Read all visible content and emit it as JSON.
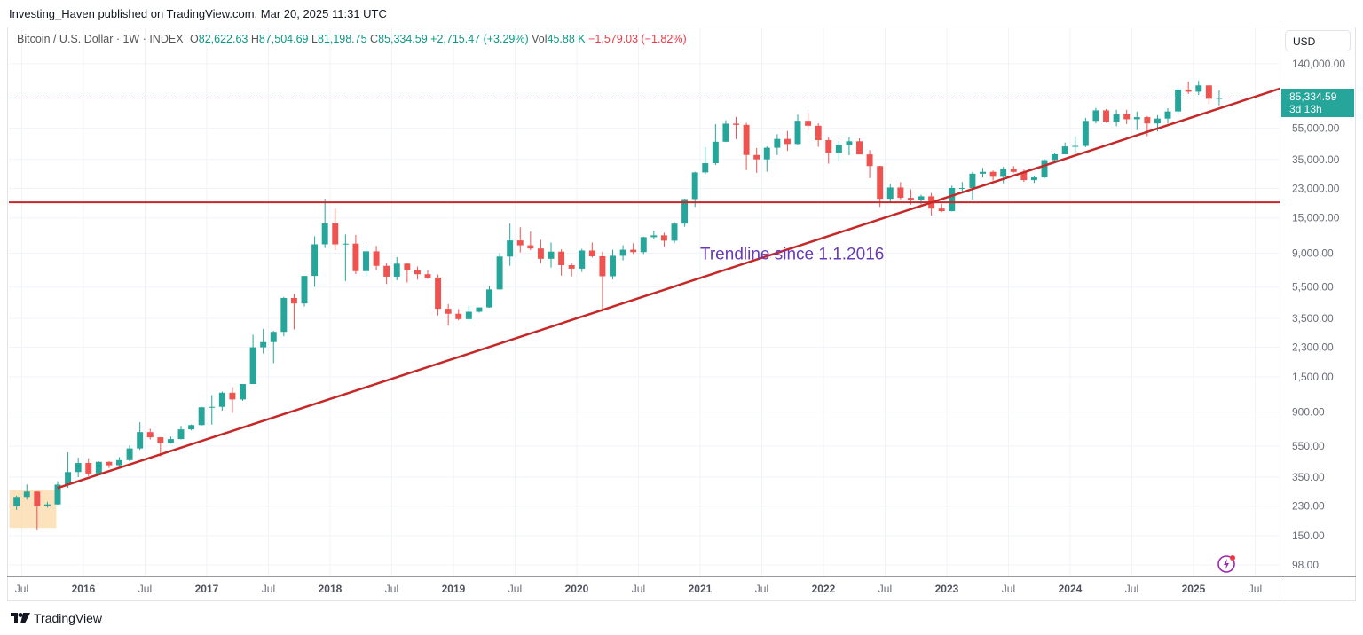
{
  "header": {
    "published": "Investing_Haven published on TradingView.com, Mar 20, 2025 11:31 UTC"
  },
  "legend": {
    "symbol": "Bitcoin / U.S. Dollar · 1W · INDEX",
    "o_label": "O",
    "o": "82,622.63",
    "h_label": "H",
    "h": "87,504.69",
    "l_label": "L",
    "l": "81,198.75",
    "c_label": "C",
    "c": "85,334.59",
    "change": "+2,715.47 (+3.29%)",
    "vol_label": "Vol",
    "vol": "45.88 K",
    "vol_change": "−1,579.03 (−1.82%)"
  },
  "price_scale": {
    "currency": "USD",
    "last_price": "85,334.59",
    "countdown": "3d 13h"
  },
  "footer": {
    "brand": "TradingView"
  },
  "colors": {
    "up": "#26a69a",
    "down": "#ef5350",
    "trendline": "#c62828",
    "annotation": "#673ab7",
    "highlight": "#fbd9a8",
    "grid": "#f0f3fa"
  },
  "chart_data": {
    "type": "candlestick",
    "scale": "log",
    "grid": true,
    "ylim": [
      83,
      240000
    ],
    "xlim": [
      2015.396,
      2025.698
    ],
    "y_ticks": [
      140000,
      55000,
      35000,
      23000,
      15000,
      9000,
      5500,
      3500,
      2300,
      1500,
      900,
      550,
      350,
      230,
      150,
      98
    ],
    "y_tick_labels": [
      "140,000.00",
      "55,000.00",
      "35,000.00",
      "23,000.00",
      "15,000.00",
      "9,000.00",
      "5,500.00",
      "3,500.00",
      "2,300.00",
      "1,500.00",
      "900.00",
      "550.00",
      "350.00",
      "230.00",
      "150.00",
      "98.00"
    ],
    "x_ticks": [
      2015.5,
      2016,
      2016.5,
      2017,
      2017.5,
      2018,
      2018.5,
      2019,
      2019.5,
      2020,
      2020.5,
      2021,
      2021.5,
      2022,
      2022.5,
      2023,
      2023.5,
      2024,
      2024.5,
      2025,
      2025.5
    ],
    "x_tick_labels": [
      "Jul",
      "2016",
      "Jul",
      "2017",
      "Jul",
      "2018",
      "Jul",
      "2019",
      "Jul",
      "2020",
      "Jul",
      "2021",
      "Jul",
      "2022",
      "Jul",
      "2023",
      "Jul",
      "2024",
      "Jul",
      "2025",
      "Jul"
    ],
    "last_price": 85334.59,
    "horizontal_line": 18800,
    "trendline": {
      "start": [
        2015.79,
        299
      ],
      "end": [
        2025.7,
        97700
      ],
      "label": "Trendline since 1.1.2016",
      "label_at": [
        2021.0,
        9000
      ]
    },
    "highlight_box": {
      "time": [
        2015.4,
        2015.78
      ],
      "price": [
        168,
        291
      ]
    },
    "ohlc_columns": [
      "month",
      "open",
      "high",
      "low",
      "close"
    ],
    "ohlc": [
      [
        "2015-06",
        230,
        268,
        218,
        263
      ],
      [
        "2015-07",
        263,
        315,
        253,
        284
      ],
      [
        "2015-08",
        284,
        285,
        162,
        230
      ],
      [
        "2015-09",
        230,
        245,
        225,
        236
      ],
      [
        "2015-10",
        236,
        330,
        235,
        314
      ],
      [
        "2015-11",
        314,
        502,
        300,
        377
      ],
      [
        "2015-12",
        377,
        465,
        350,
        430
      ],
      [
        "2016-01",
        430,
        460,
        355,
        369
      ],
      [
        "2016-02",
        369,
        440,
        365,
        437
      ],
      [
        "2016-03",
        437,
        440,
        400,
        416
      ],
      [
        "2016-04",
        416,
        468,
        412,
        448
      ],
      [
        "2016-05",
        448,
        555,
        440,
        531
      ],
      [
        "2016-06",
        531,
        778,
        520,
        673
      ],
      [
        "2016-07",
        673,
        705,
        605,
        624
      ],
      [
        "2016-08",
        624,
        625,
        472,
        574
      ],
      [
        "2016-09",
        574,
        630,
        570,
        608
      ],
      [
        "2016-10",
        608,
        735,
        605,
        700
      ],
      [
        "2016-11",
        700,
        752,
        690,
        745
      ],
      [
        "2016-12",
        745,
        970,
        740,
        964
      ],
      [
        "2017-01",
        964,
        1150,
        750,
        970
      ],
      [
        "2017-02",
        970,
        1210,
        918,
        1190
      ],
      [
        "2017-03",
        1190,
        1290,
        890,
        1080
      ],
      [
        "2017-04",
        1080,
        1350,
        1060,
        1350
      ],
      [
        "2017-05",
        1350,
        2760,
        1350,
        2300
      ],
      [
        "2017-06",
        2300,
        3000,
        2100,
        2480
      ],
      [
        "2017-07",
        2480,
        2920,
        1830,
        2875
      ],
      [
        "2017-08",
        2875,
        4770,
        2700,
        4700
      ],
      [
        "2017-09",
        4700,
        4980,
        2980,
        4340
      ],
      [
        "2017-10",
        4340,
        6470,
        4150,
        6470
      ],
      [
        "2017-11",
        6470,
        11500,
        5520,
        10230
      ],
      [
        "2017-12",
        10230,
        19800,
        9700,
        13860
      ],
      [
        "2018-01",
        13860,
        17250,
        9400,
        10220
      ],
      [
        "2018-02",
        10220,
        11800,
        6000,
        10330
      ],
      [
        "2018-03",
        10330,
        11700,
        6650,
        6930
      ],
      [
        "2018-04",
        6930,
        9800,
        6430,
        9240
      ],
      [
        "2018-05",
        9240,
        10000,
        7000,
        7490
      ],
      [
        "2018-06",
        7490,
        7760,
        5750,
        6400
      ],
      [
        "2018-07",
        6400,
        8500,
        6070,
        7730
      ],
      [
        "2018-08",
        7730,
        7750,
        5880,
        7030
      ],
      [
        "2018-09",
        7030,
        7410,
        6130,
        6630
      ],
      [
        "2018-10",
        6630,
        7000,
        6200,
        6320
      ],
      [
        "2018-11",
        6320,
        6600,
        3650,
        4020
      ],
      [
        "2018-12",
        4020,
        4300,
        3150,
        3740
      ],
      [
        "2019-01",
        3740,
        4000,
        3400,
        3460
      ],
      [
        "2019-02",
        3460,
        4200,
        3400,
        3850
      ],
      [
        "2019-03",
        3850,
        4100,
        3800,
        4100
      ],
      [
        "2019-04",
        4100,
        5600,
        4080,
        5320
      ],
      [
        "2019-05",
        5320,
        9000,
        5300,
        8570
      ],
      [
        "2019-06",
        8570,
        13800,
        7500,
        10820
      ],
      [
        "2019-07",
        10820,
        13100,
        9100,
        10080
      ],
      [
        "2019-08",
        10080,
        12300,
        9400,
        9630
      ],
      [
        "2019-09",
        9630,
        10900,
        7800,
        8290
      ],
      [
        "2019-10",
        8290,
        10500,
        7300,
        9200
      ],
      [
        "2019-11",
        9200,
        9500,
        6500,
        7560
      ],
      [
        "2019-12",
        7560,
        7750,
        6430,
        7190
      ],
      [
        "2020-01",
        7190,
        9580,
        6850,
        9350
      ],
      [
        "2020-02",
        9350,
        10500,
        8450,
        8600
      ],
      [
        "2020-03",
        8600,
        9190,
        3850,
        6440
      ],
      [
        "2020-04",
        6440,
        9460,
        6150,
        8660
      ],
      [
        "2020-05",
        8660,
        10080,
        8110,
        9460
      ],
      [
        "2020-06",
        9460,
        10400,
        8900,
        9140
      ],
      [
        "2020-07",
        9140,
        11440,
        8900,
        11350
      ],
      [
        "2020-08",
        11350,
        12480,
        11000,
        11650
      ],
      [
        "2020-09",
        11650,
        12100,
        9870,
        10780
      ],
      [
        "2020-10",
        10780,
        14100,
        10400,
        13800
      ],
      [
        "2020-11",
        13800,
        19800,
        13200,
        19700
      ],
      [
        "2020-12",
        19700,
        29300,
        17600,
        28990
      ],
      [
        "2021-01",
        28990,
        41950,
        28130,
        33140
      ],
      [
        "2021-02",
        33140,
        58350,
        32300,
        45240
      ],
      [
        "2021-03",
        45240,
        61800,
        45000,
        58800
      ],
      [
        "2021-04",
        58800,
        64900,
        47000,
        57750
      ],
      [
        "2021-05",
        57750,
        59500,
        30000,
        37330
      ],
      [
        "2021-06",
        37330,
        41300,
        28800,
        35040
      ],
      [
        "2021-07",
        35040,
        42300,
        29300,
        41460
      ],
      [
        "2021-08",
        41460,
        50500,
        37300,
        47100
      ],
      [
        "2021-09",
        47100,
        52900,
        39600,
        43790
      ],
      [
        "2021-10",
        43790,
        67000,
        43300,
        61300
      ],
      [
        "2021-11",
        61300,
        69000,
        53500,
        57000
      ],
      [
        "2021-12",
        57000,
        59000,
        42000,
        46300
      ],
      [
        "2022-01",
        46300,
        48000,
        32900,
        38480
      ],
      [
        "2022-02",
        38480,
        45800,
        34300,
        43190
      ],
      [
        "2022-03",
        43190,
        48200,
        37200,
        45540
      ],
      [
        "2022-04",
        45540,
        47500,
        37700,
        37640
      ],
      [
        "2022-05",
        37640,
        40000,
        26700,
        31800
      ],
      [
        "2022-06",
        31800,
        31900,
        17600,
        19780
      ],
      [
        "2022-07",
        19780,
        24600,
        18800,
        23300
      ],
      [
        "2022-08",
        23300,
        25200,
        19600,
        20050
      ],
      [
        "2022-09",
        20050,
        22700,
        18200,
        19430
      ],
      [
        "2022-10",
        19430,
        21000,
        18200,
        20500
      ],
      [
        "2022-11",
        20500,
        21500,
        15500,
        17170
      ],
      [
        "2022-12",
        17170,
        18400,
        16300,
        16550
      ],
      [
        "2023-01",
        16550,
        23950,
        16500,
        23130
      ],
      [
        "2023-02",
        23130,
        25250,
        21400,
        23150
      ],
      [
        "2023-03",
        23150,
        29200,
        19550,
        28480
      ],
      [
        "2023-04",
        28480,
        31000,
        26900,
        29250
      ],
      [
        "2023-05",
        29250,
        29800,
        25800,
        27220
      ],
      [
        "2023-06",
        27220,
        31400,
        24800,
        30480
      ],
      [
        "2023-07",
        30480,
        31800,
        28900,
        29230
      ],
      [
        "2023-08",
        29230,
        30200,
        25300,
        25940
      ],
      [
        "2023-09",
        25940,
        27500,
        24900,
        26970
      ],
      [
        "2023-10",
        26970,
        35200,
        26600,
        34660
      ],
      [
        "2023-11",
        34660,
        38400,
        34100,
        37720
      ],
      [
        "2023-12",
        37720,
        44700,
        37600,
        42280
      ],
      [
        "2024-01",
        42280,
        48900,
        38500,
        42580
      ],
      [
        "2024-02",
        42580,
        63900,
        41900,
        61200
      ],
      [
        "2024-03",
        61200,
        73800,
        59000,
        71300
      ],
      [
        "2024-04",
        71300,
        72700,
        59600,
        60670
      ],
      [
        "2024-05",
        60670,
        71900,
        56500,
        67500
      ],
      [
        "2024-06",
        67500,
        71900,
        58400,
        62700
      ],
      [
        "2024-07",
        62700,
        70000,
        53500,
        64600
      ],
      [
        "2024-08",
        64600,
        65600,
        49000,
        58970
      ],
      [
        "2024-09",
        58970,
        66500,
        52500,
        63300
      ],
      [
        "2024-10",
        63300,
        73600,
        58900,
        70200
      ],
      [
        "2024-11",
        70200,
        99600,
        66800,
        96400
      ],
      [
        "2024-12",
        96400,
        108300,
        90500,
        93400
      ],
      [
        "2025-01",
        93400,
        109300,
        89200,
        102400
      ],
      [
        "2025-02",
        102400,
        102500,
        78200,
        84350
      ],
      [
        "2025-03",
        84350,
        95000,
        76600,
        85334.59
      ]
    ]
  }
}
